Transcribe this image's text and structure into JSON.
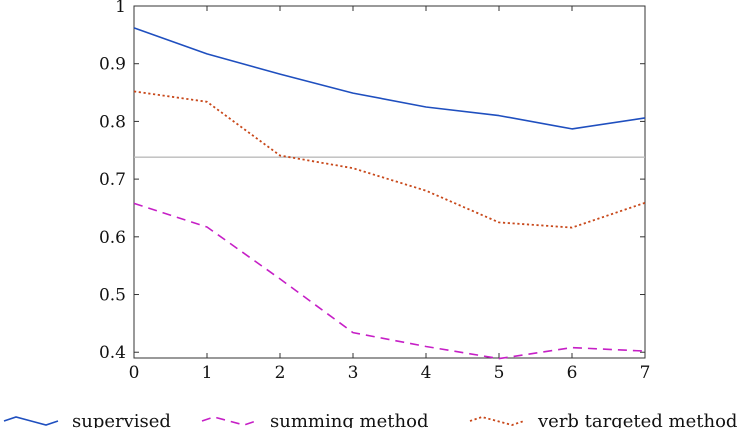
{
  "chart_data": {
    "type": "line",
    "x": [
      0,
      1,
      2,
      3,
      4,
      5,
      6,
      7
    ],
    "xlim": [
      0,
      7
    ],
    "ylim": [
      0.39,
      1.0
    ],
    "xticks": [
      "0",
      "1",
      "2",
      "3",
      "4",
      "5",
      "6",
      "7"
    ],
    "yticks": [
      {
        "value": 0.4,
        "label": "0.4"
      },
      {
        "value": 0.5,
        "label": "0.5"
      },
      {
        "value": 0.6,
        "label": "0.6"
      },
      {
        "value": 0.7,
        "label": "0.7"
      },
      {
        "value": 0.8,
        "label": "0.8"
      },
      {
        "value": 0.9,
        "label": "0.9"
      },
      {
        "value": 1.0,
        "label": "1"
      }
    ],
    "reference_line": {
      "y": 0.738,
      "color": "#bbbbbb"
    },
    "grid": false,
    "legend_position": "bottom",
    "series": [
      {
        "name": "supervised",
        "color": "#1f4fbf",
        "style": "solid",
        "values": [
          0.962,
          0.917,
          0.882,
          0.849,
          0.825,
          0.81,
          0.787,
          0.806
        ]
      },
      {
        "name": "summing method",
        "color": "#c61fc6",
        "style": "dashed",
        "values": [
          0.658,
          0.617,
          0.527,
          0.434,
          0.41,
          0.389,
          0.408,
          0.402
        ]
      },
      {
        "name": "verb targeted method",
        "color": "#c8481a",
        "style": "dotted",
        "values": [
          0.852,
          0.834,
          0.741,
          0.719,
          0.68,
          0.625,
          0.616,
          0.659
        ]
      }
    ]
  }
}
